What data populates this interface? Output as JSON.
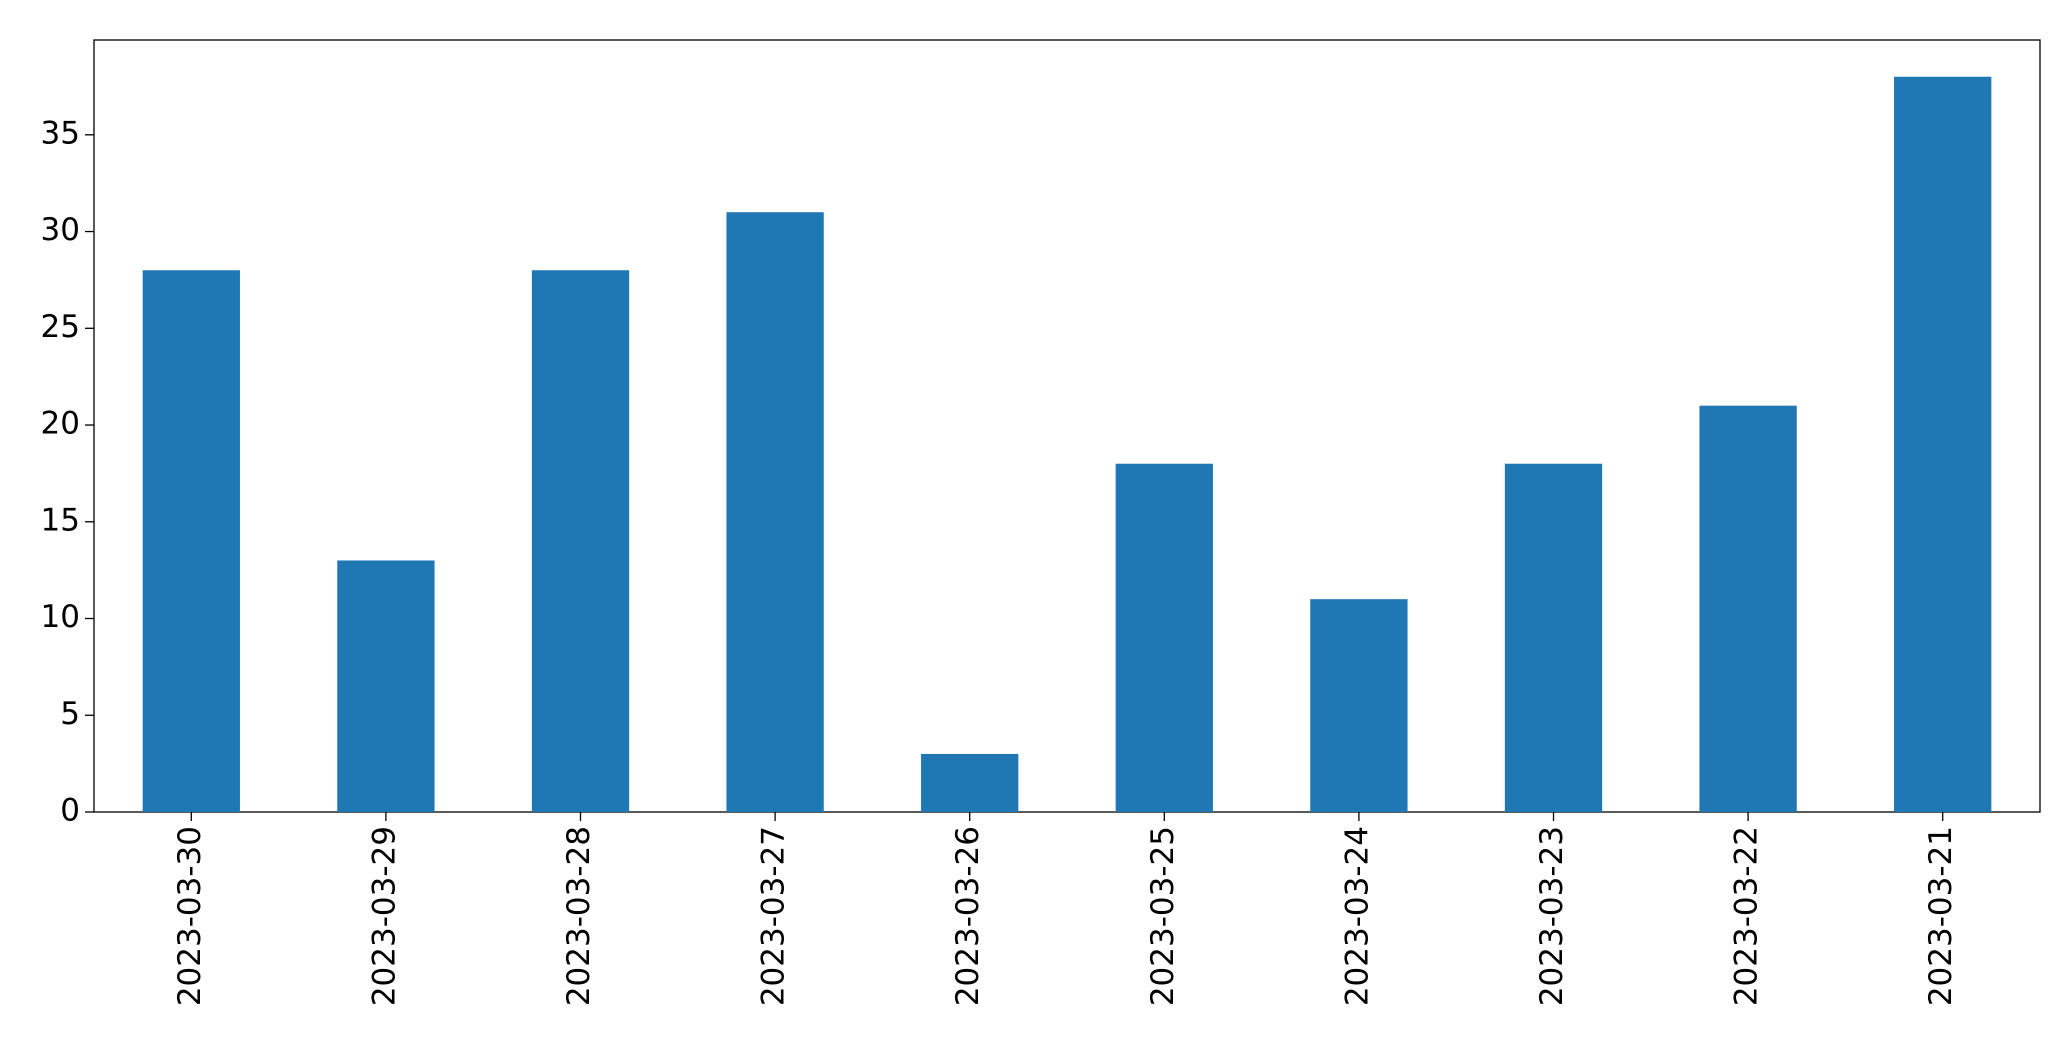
{
  "chart_data": {
    "type": "bar",
    "categories": [
      "2023-03-30",
      "2023-03-29",
      "2023-03-28",
      "2023-03-27",
      "2023-03-26",
      "2023-03-25",
      "2023-03-24",
      "2023-03-23",
      "2023-03-22",
      "2023-03-21"
    ],
    "values": [
      28,
      13,
      28,
      31,
      3,
      18,
      11,
      18,
      21,
      38
    ],
    "color": "#1f77b4",
    "ylim": [
      0,
      39.9
    ],
    "yticks": [
      0,
      5,
      10,
      15,
      20,
      25,
      30,
      35
    ],
    "grid": false
  }
}
